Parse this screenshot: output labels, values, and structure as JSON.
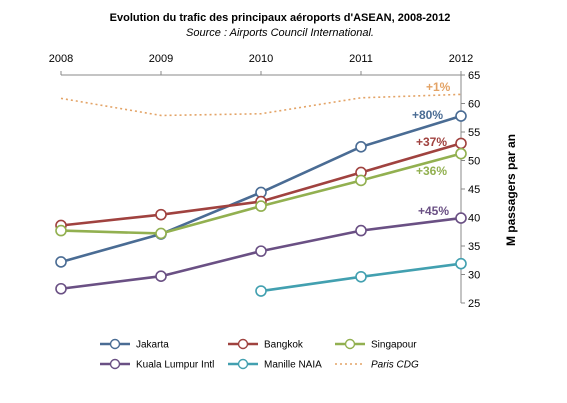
{
  "chart_data": {
    "type": "line",
    "title": "Evolution du trafic des principaux aéroports d'ASEAN, 2008-2012",
    "subtitle": "Source : Airports Council International.",
    "x": [
      "2008",
      "2009",
      "2010",
      "2011",
      "2012"
    ],
    "ylabel": "M passagers par an",
    "ylim": [
      25,
      65
    ],
    "yticks": [
      "25",
      "30",
      "35",
      "40",
      "45",
      "50",
      "55",
      "60",
      "65"
    ],
    "y_axis_position": "right",
    "x_axis_position": "top",
    "grid": false,
    "legend_position": "bottom",
    "series": [
      {
        "name": "Jakarta",
        "values": [
          32.2,
          37.1,
          44.4,
          52.4,
          57.8
        ],
        "color": "#4A6C94",
        "style": "solid",
        "growth_label": "+80%"
      },
      {
        "name": "Bangkok",
        "values": [
          38.6,
          40.5,
          42.8,
          47.9,
          53.0
        ],
        "color": "#A0423F",
        "style": "solid",
        "growth_label": "+37%"
      },
      {
        "name": "Singapour",
        "values": [
          37.7,
          37.2,
          42.0,
          46.5,
          51.2
        ],
        "color": "#92B050",
        "style": "solid",
        "growth_label": "+36%"
      },
      {
        "name": "Kuala Lumpur Intl",
        "values": [
          27.5,
          29.7,
          34.1,
          37.7,
          39.9
        ],
        "color": "#6A5084",
        "style": "solid",
        "growth_label": "+45%"
      },
      {
        "name": "Manille NAIA",
        "values": [
          null,
          null,
          27.1,
          29.6,
          31.9
        ],
        "color": "#42A0B0",
        "style": "solid",
        "growth_label": ""
      },
      {
        "name": "Paris CDG",
        "values": [
          60.9,
          57.9,
          58.2,
          61.0,
          61.6
        ],
        "color": "#E3A366",
        "style": "dotted",
        "growth_label": "+1%"
      }
    ]
  }
}
